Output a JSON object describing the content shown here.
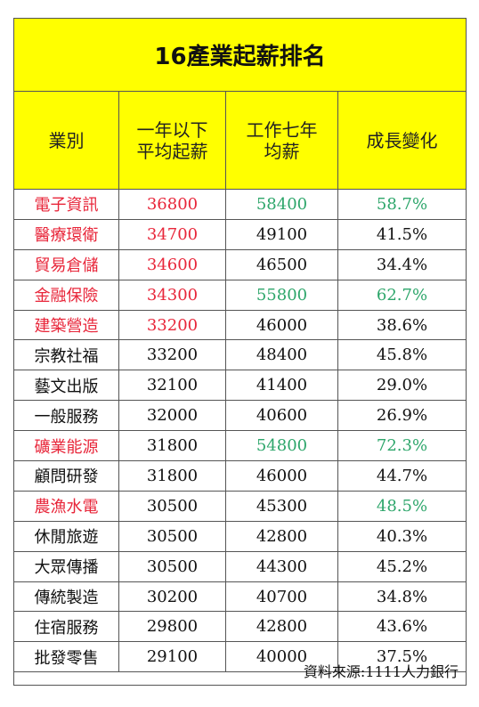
{
  "title": "16產業起薪排名",
  "headers": {
    "industry": "業別",
    "starting": "一年以下\n平均起薪",
    "seven_year": "工作七年\n均薪",
    "growth": "成長變化"
  },
  "colors": {
    "header_bg": "#ffff00",
    "highlight_red": "#e8263a",
    "highlight_green": "#2ea66b"
  },
  "rows": [
    {
      "industry": "電子資訊",
      "starting": "36800",
      "seven_year": "58400",
      "growth": "58.7%",
      "industry_color": "red",
      "starting_color": "red",
      "seven_color": "green",
      "growth_color": "green"
    },
    {
      "industry": "醫療環衛",
      "starting": "34700",
      "seven_year": "49100",
      "growth": "41.5%",
      "industry_color": "red",
      "starting_color": "red",
      "seven_color": "",
      "growth_color": ""
    },
    {
      "industry": "貿易倉儲",
      "starting": "34600",
      "seven_year": "46500",
      "growth": "34.4%",
      "industry_color": "red",
      "starting_color": "red",
      "seven_color": "",
      "growth_color": ""
    },
    {
      "industry": "金融保險",
      "starting": "34300",
      "seven_year": "55800",
      "growth": "62.7%",
      "industry_color": "red",
      "starting_color": "red",
      "seven_color": "green",
      "growth_color": "green"
    },
    {
      "industry": "建築營造",
      "starting": "33200",
      "seven_year": "46000",
      "growth": "38.6%",
      "industry_color": "red",
      "starting_color": "red",
      "seven_color": "",
      "growth_color": ""
    },
    {
      "industry": "宗教社福",
      "starting": "33200",
      "seven_year": "48400",
      "growth": "45.8%",
      "industry_color": "",
      "starting_color": "",
      "seven_color": "",
      "growth_color": ""
    },
    {
      "industry": "藝文出版",
      "starting": "32100",
      "seven_year": "41400",
      "growth": "29.0%",
      "industry_color": "",
      "starting_color": "",
      "seven_color": "",
      "growth_color": ""
    },
    {
      "industry": "一般服務",
      "starting": "32000",
      "seven_year": "40600",
      "growth": "26.9%",
      "industry_color": "",
      "starting_color": "",
      "seven_color": "",
      "growth_color": ""
    },
    {
      "industry": "礦業能源",
      "starting": "31800",
      "seven_year": "54800",
      "growth": "72.3%",
      "industry_color": "red",
      "starting_color": "",
      "seven_color": "green",
      "growth_color": "green"
    },
    {
      "industry": "顧問研發",
      "starting": "31800",
      "seven_year": "46000",
      "growth": "44.7%",
      "industry_color": "",
      "starting_color": "",
      "seven_color": "",
      "growth_color": ""
    },
    {
      "industry": "農漁水電",
      "starting": "30500",
      "seven_year": "45300",
      "growth": "48.5%",
      "industry_color": "red",
      "starting_color": "",
      "seven_color": "",
      "growth_color": "green"
    },
    {
      "industry": "休閒旅遊",
      "starting": "30500",
      "seven_year": "42800",
      "growth": "40.3%",
      "industry_color": "",
      "starting_color": "",
      "seven_color": "",
      "growth_color": ""
    },
    {
      "industry": "大眾傳播",
      "starting": "30500",
      "seven_year": "44300",
      "growth": "45.2%",
      "industry_color": "",
      "starting_color": "",
      "seven_color": "",
      "growth_color": ""
    },
    {
      "industry": "傳統製造",
      "starting": "30200",
      "seven_year": "40700",
      "growth": "34.8%",
      "industry_color": "",
      "starting_color": "",
      "seven_color": "",
      "growth_color": ""
    },
    {
      "industry": "住宿服務",
      "starting": "29800",
      "seven_year": "42800",
      "growth": "43.6%",
      "industry_color": "",
      "starting_color": "",
      "seven_color": "",
      "growth_color": ""
    },
    {
      "industry": "批發零售",
      "starting": "29100",
      "seven_year": "40000",
      "growth": "37.5%",
      "industry_color": "",
      "starting_color": "",
      "seven_color": "",
      "growth_color": ""
    }
  ],
  "source": "資料來源:1111人力銀行"
}
